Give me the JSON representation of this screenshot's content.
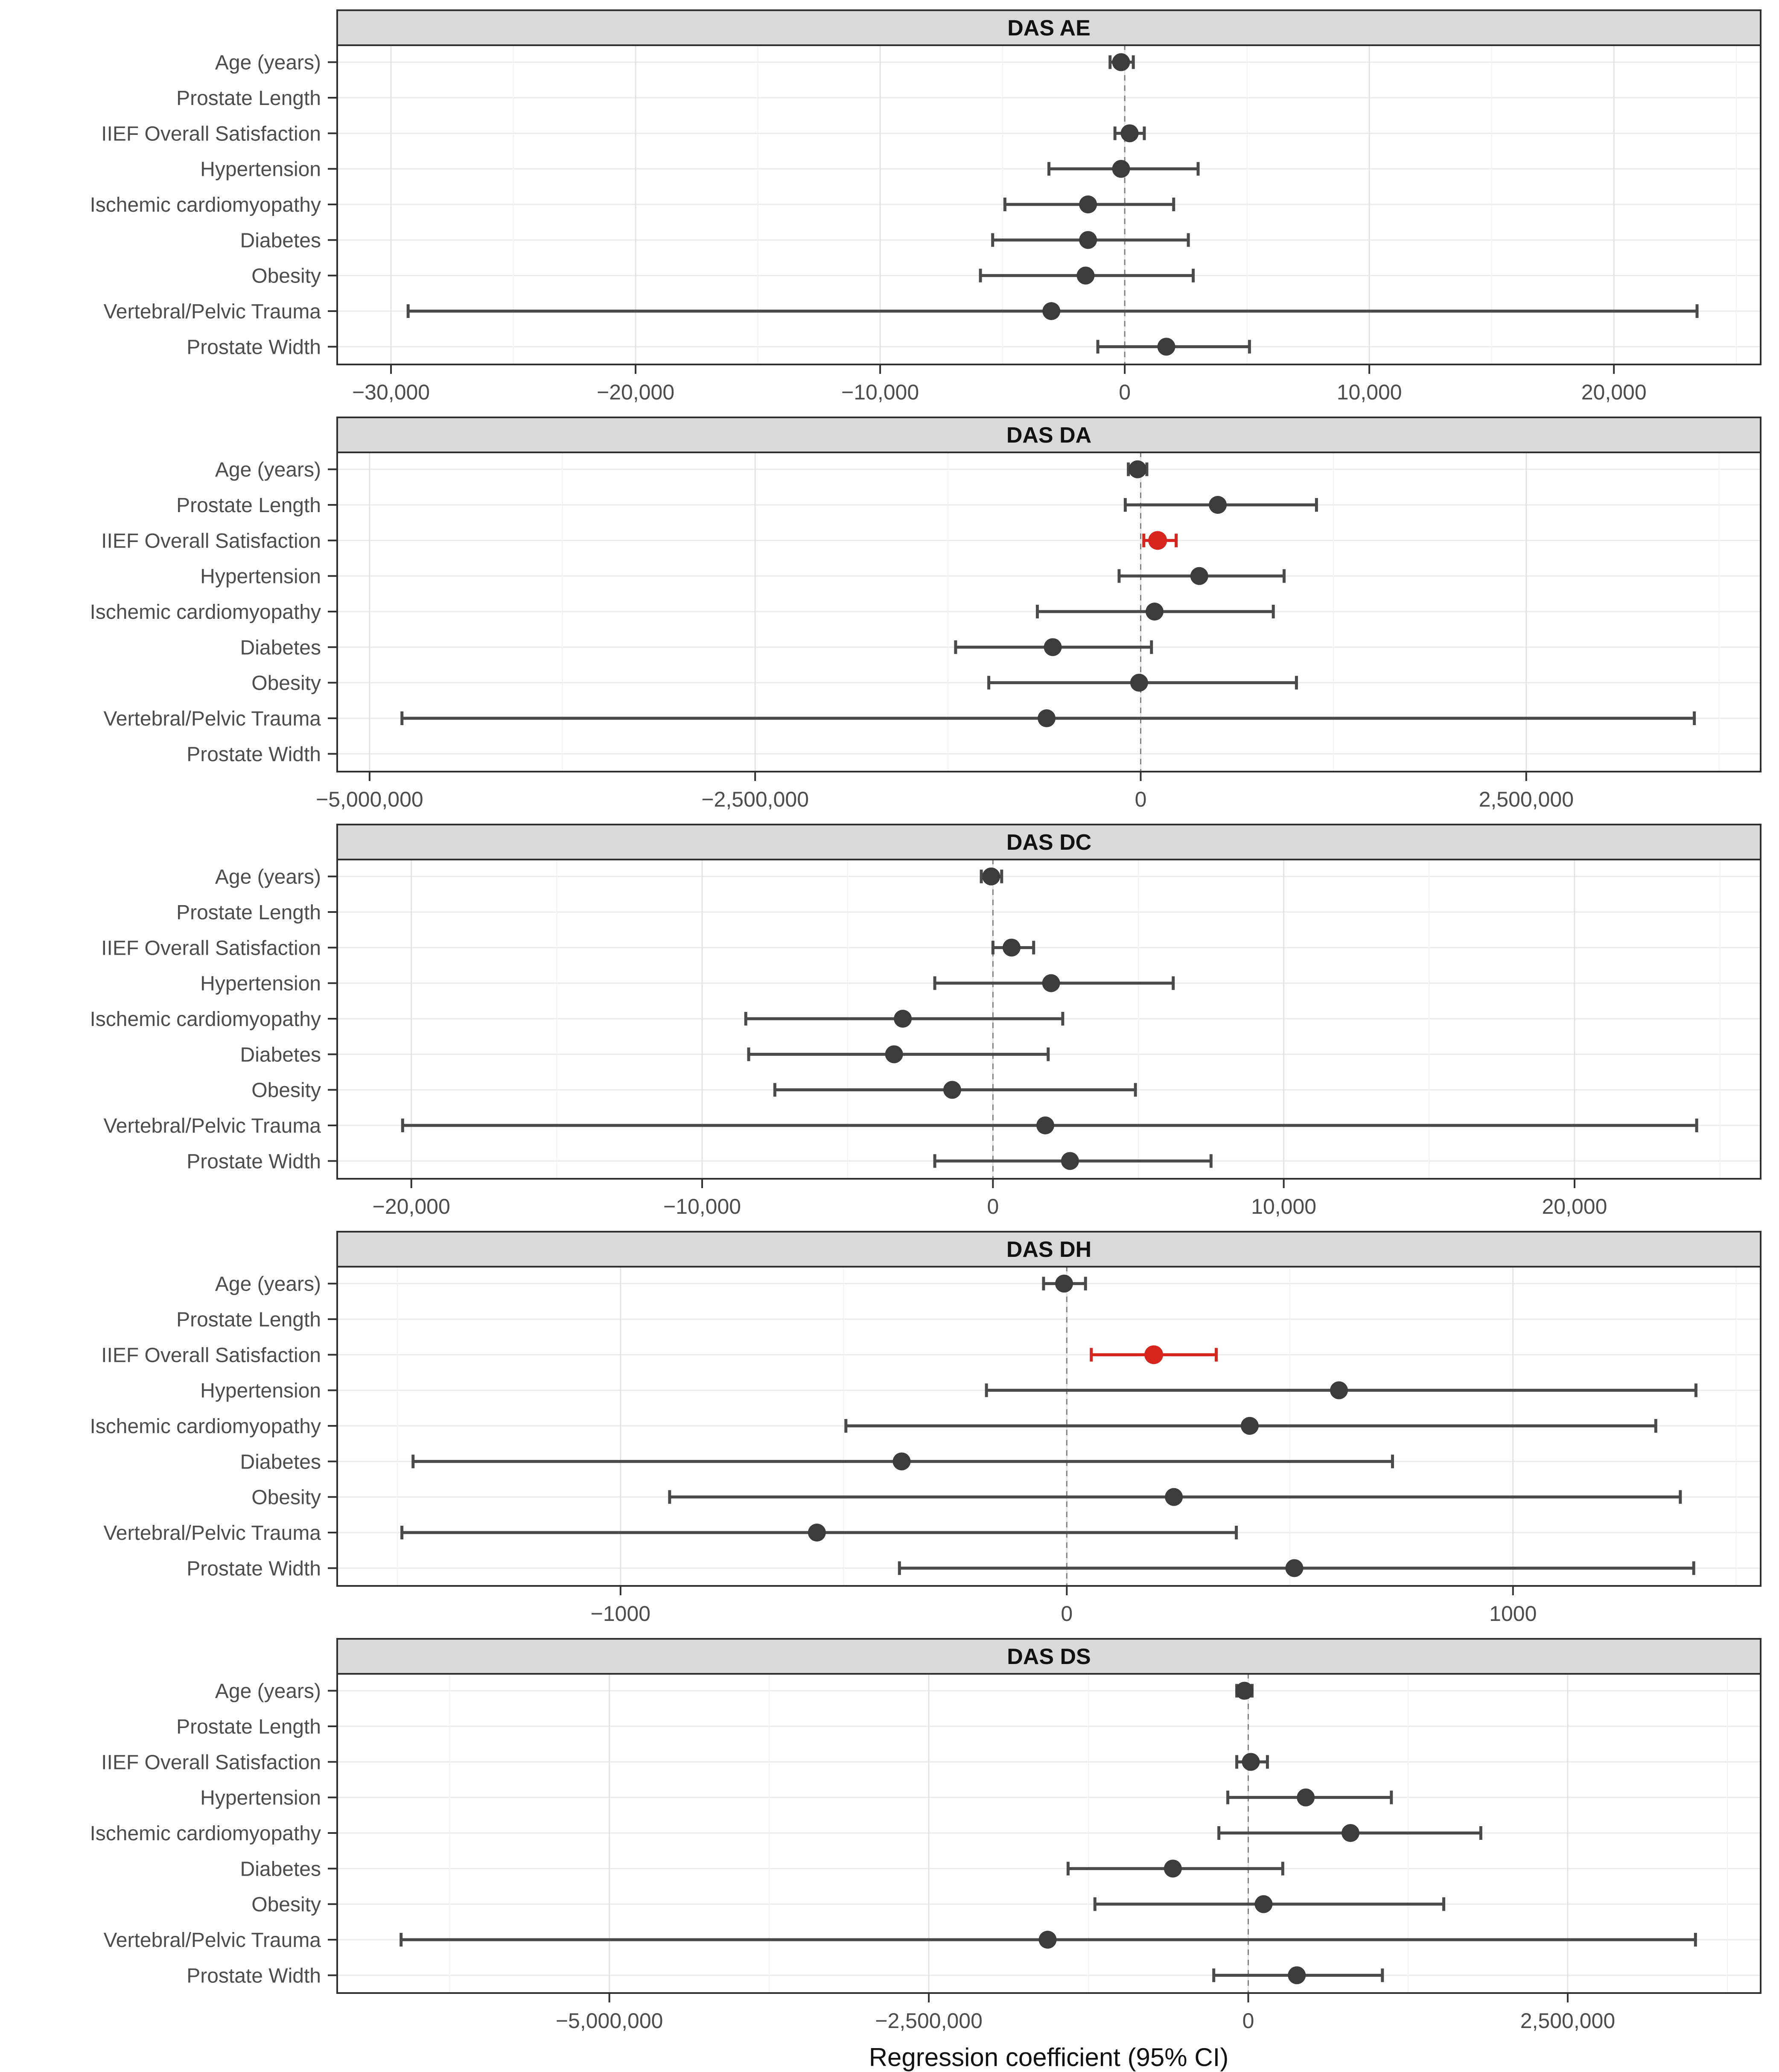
{
  "axis_x_title": "Regression coefficient (95% CI)",
  "categories": [
    "Age (years)",
    "Prostate Length",
    "IIEF Overall Satisfaction",
    "Hypertension",
    "Ischemic cardiomyopathy",
    "Diabetes",
    "Obesity",
    "Vertebral/Pelvic Trauma",
    "Prostate Width"
  ],
  "colors": {
    "point": "#3c3c3c",
    "ci_line": "#4a4a4a",
    "highlight": "#d7251d",
    "header_fill": "#d9d9d9",
    "panel_border": "#2f2f2f",
    "grid_major": "#e3e3e3",
    "grid_minor": "#f1f1f1",
    "grid_row": "#ececec",
    "zero_line": "#808080",
    "tick_mark": "#333333",
    "tick_text": "#4d4d4d",
    "strip_text": "#111111"
  },
  "chart_data": [
    {
      "type": "forest",
      "title": "DAS AE",
      "xlim": [
        -32200,
        26000
      ],
      "ticks": [
        {
          "v": -30000,
          "label": "−30,000"
        },
        {
          "v": -20000,
          "label": "−20,000"
        },
        {
          "v": -10000,
          "label": "−10,000"
        },
        {
          "v": 0,
          "label": "0"
        },
        {
          "v": 10000,
          "label": "10,000"
        },
        {
          "v": 20000,
          "label": "20,000"
        }
      ],
      "minor_ticks": [
        -25000,
        -15000,
        -5000,
        5000,
        15000,
        25000
      ],
      "rows": [
        {
          "est": -150,
          "lo": -600,
          "hi": 350
        },
        null,
        {
          "est": 200,
          "lo": -400,
          "hi": 800
        },
        {
          "est": -150,
          "lo": -3100,
          "hi": 3000
        },
        {
          "est": -1500,
          "lo": -4900,
          "hi": 2000
        },
        {
          "est": -1500,
          "lo": -5400,
          "hi": 2600
        },
        {
          "est": -1600,
          "lo": -5900,
          "hi": 2800
        },
        {
          "est": -3000,
          "lo": -29300,
          "hi": 23400
        },
        {
          "est": 1700,
          "lo": -1100,
          "hi": 5100
        }
      ]
    },
    {
      "type": "forest",
      "title": "DAS DA",
      "xlim": [
        -5210000,
        4020000
      ],
      "ticks": [
        {
          "v": -5000000,
          "label": "−5,000,000"
        },
        {
          "v": -2500000,
          "label": "−2,500,000"
        },
        {
          "v": 0,
          "label": "0"
        },
        {
          "v": 2500000,
          "label": "2,500,000"
        }
      ],
      "minor_ticks": [
        -3750000,
        -1250000,
        1250000,
        3750000
      ],
      "rows": [
        {
          "est": -20000,
          "lo": -80000,
          "hi": 40000
        },
        {
          "est": 500000,
          "lo": -100000,
          "hi": 1140000
        },
        {
          "est": 110000,
          "lo": 20000,
          "hi": 230000,
          "highlight": true
        },
        {
          "est": 380000,
          "lo": -140000,
          "hi": 930000
        },
        {
          "est": 90000,
          "lo": -670000,
          "hi": 860000
        },
        {
          "est": -570000,
          "lo": -1200000,
          "hi": 70000
        },
        {
          "est": -10000,
          "lo": -985000,
          "hi": 1010000
        },
        {
          "est": -610000,
          "lo": -4790000,
          "hi": 3590000
        },
        null
      ]
    },
    {
      "type": "forest",
      "title": "DAS DC",
      "xlim": [
        -22550,
        26400
      ],
      "ticks": [
        {
          "v": -20000,
          "label": "−20,000"
        },
        {
          "v": -10000,
          "label": "−10,000"
        },
        {
          "v": 0,
          "label": "0"
        },
        {
          "v": 10000,
          "label": "10,000"
        },
        {
          "v": 20000,
          "label": "20,000"
        }
      ],
      "minor_ticks": [
        -15000,
        -5000,
        5000,
        15000,
        25000
      ],
      "rows": [
        {
          "est": -60,
          "lo": -400,
          "hi": 300
        },
        null,
        {
          "est": 640,
          "lo": 0,
          "hi": 1400
        },
        {
          "est": 2000,
          "lo": -2000,
          "hi": 6200
        },
        {
          "est": -3100,
          "lo": -8500,
          "hi": 2400
        },
        {
          "est": -3400,
          "lo": -8400,
          "hi": 1900
        },
        {
          "est": -1400,
          "lo": -7500,
          "hi": 4900
        },
        {
          "est": 1800,
          "lo": -20300,
          "hi": 24200
        },
        {
          "est": 2650,
          "lo": -2000,
          "hi": 7500
        }
      ]
    },
    {
      "type": "forest",
      "title": "DAS DH",
      "xlim": [
        -1635,
        1555
      ],
      "ticks": [
        {
          "v": -1000,
          "label": "−1000"
        },
        {
          "v": 0,
          "label": "0"
        },
        {
          "v": 1000,
          "label": "1000"
        }
      ],
      "minor_ticks": [
        -1500,
        -500,
        500,
        1500
      ],
      "rows": [
        {
          "est": -6,
          "lo": -52,
          "hi": 42
        },
        null,
        {
          "est": 195,
          "lo": 55,
          "hi": 335,
          "highlight": true
        },
        {
          "est": 610,
          "lo": -180,
          "hi": 1410
        },
        {
          "est": 410,
          "lo": -495,
          "hi": 1320
        },
        {
          "est": -370,
          "lo": -1465,
          "hi": 730
        },
        {
          "est": 240,
          "lo": -890,
          "hi": 1375
        },
        {
          "est": -560,
          "lo": -1490,
          "hi": 380
        },
        {
          "est": 510,
          "lo": -375,
          "hi": 1405
        }
      ]
    },
    {
      "type": "forest",
      "title": "DAS DS",
      "xlim": [
        -7130000,
        4010000
      ],
      "ticks": [
        {
          "v": -5000000,
          "label": "−5,000,000"
        },
        {
          "v": -2500000,
          "label": "−2,500,000"
        },
        {
          "v": 0,
          "label": "0"
        },
        {
          "v": 2500000,
          "label": "2,500,000"
        }
      ],
      "minor_ticks": [
        -6250000,
        -3750000,
        -1250000,
        1250000,
        3750000
      ],
      "rows": [
        {
          "est": -30000,
          "lo": -90000,
          "hi": 30000
        },
        null,
        {
          "est": 20000,
          "lo": -90000,
          "hi": 150000
        },
        {
          "est": 450000,
          "lo": -160000,
          "hi": 1120000
        },
        {
          "est": 800000,
          "lo": -230000,
          "hi": 1820000
        },
        {
          "est": -590000,
          "lo": -1410000,
          "hi": 270000
        },
        {
          "est": 120000,
          "lo": -1200000,
          "hi": 1530000
        },
        {
          "est": -1570000,
          "lo": -6630000,
          "hi": 3500000
        },
        {
          "est": 380000,
          "lo": -270000,
          "hi": 1050000
        }
      ]
    }
  ]
}
